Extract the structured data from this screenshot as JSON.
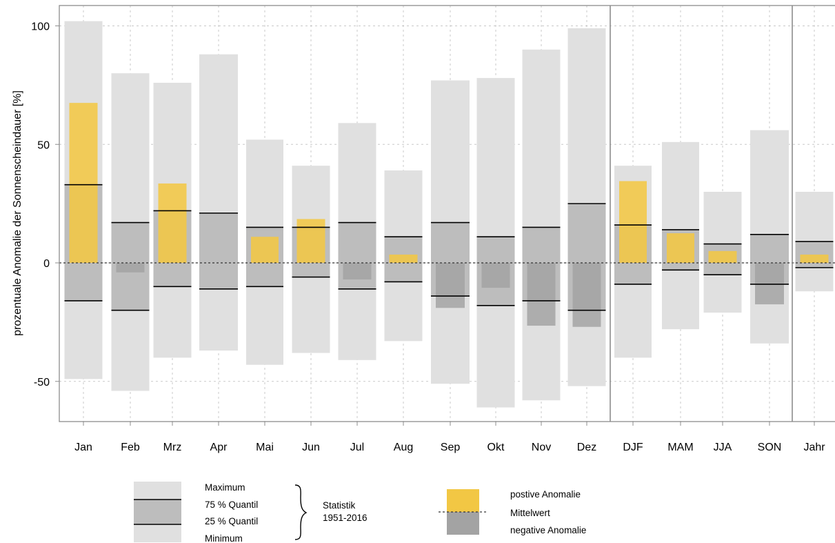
{
  "chart_data": {
    "type": "bar",
    "ylabel": "prozentuale Anomalie der Sonnenscheindauer  [%]",
    "ylim": [
      -67,
      110
    ],
    "yticks": [
      -50,
      0,
      50,
      100
    ],
    "grid": true,
    "categories": [
      "Jan",
      "Feb",
      "Mrz",
      "Apr",
      "Mai",
      "Jun",
      "Jul",
      "Aug",
      "Sep",
      "Okt",
      "Nov",
      "Dez",
      "DJF",
      "MAM",
      "JJA",
      "SON",
      "Jahr"
    ],
    "groups": [
      {
        "members": [
          "Jan",
          "Feb",
          "Mrz",
          "Apr",
          "Mai",
          "Jun",
          "Jul",
          "Aug",
          "Sep",
          "Okt",
          "Nov",
          "Dez"
        ]
      },
      {
        "members": [
          "DJF",
          "MAM",
          "JJA",
          "SON"
        ]
      },
      {
        "members": [
          "Jahr"
        ]
      }
    ],
    "statistics": {
      "maximum": [
        102,
        80,
        76,
        88,
        52,
        41,
        59,
        39,
        77,
        78,
        90,
        99,
        41,
        51,
        30,
        56,
        30
      ],
      "quantil_75": [
        33,
        17,
        22,
        21,
        15,
        15,
        17,
        11,
        17,
        11,
        15,
        25,
        16,
        14,
        8,
        12,
        9
      ],
      "quantil_25": [
        -16,
        -20,
        -10,
        -11,
        -10,
        -6,
        -11,
        -8,
        -14,
        -18,
        -16,
        -20,
        -9,
        -3,
        -5,
        -9,
        -2
      ],
      "minimum": [
        -49,
        -54,
        -40,
        -37,
        -43,
        -38,
        -41,
        -33,
        -51,
        -61,
        -58,
        -52,
        -40,
        -28,
        -21,
        -34,
        -12
      ]
    },
    "anomalie": [
      67.5,
      -4,
      33.5,
      0,
      11,
      18.5,
      -7,
      3.5,
      -19,
      -10.5,
      -26.5,
      -27,
      34.5,
      12.5,
      5,
      -17.5,
      3.5
    ],
    "colors": {
      "range": "#e0e0e0",
      "quartile": "#bdbdbd",
      "positive": "#f2c744",
      "negative": "#a3a3a3",
      "lines": "#000000",
      "grid": "#c8c8c8",
      "frame": "#8c8c8c"
    }
  },
  "legend": {
    "stat_labels": [
      "Maximum",
      "75 % Quantil",
      "25 % Quantil",
      "Minimum"
    ],
    "stat_title_1": "Statistik",
    "stat_title_2": "1951-2016",
    "anom_labels": [
      "postive Anomalie",
      "Mittelwert",
      "negative Anomalie"
    ]
  }
}
